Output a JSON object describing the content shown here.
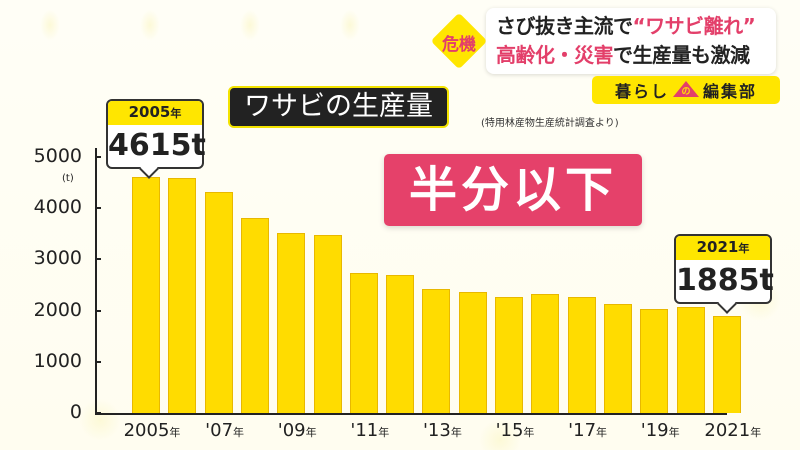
{
  "headline": {
    "badge": "危機",
    "line1_black": "さび抜き主流で",
    "line1_pink": "“ワサビ離れ”",
    "line2_pink": "高齢化・災害",
    "line2_black": "で生産量も激減"
  },
  "logo": {
    "left": "暮らし",
    "mark": "の",
    "right": "編集部"
  },
  "title": "ワサビの生産量",
  "source": "(特用林産物生産統計調査より)",
  "highlight": "半分以下",
  "callouts": [
    {
      "year": "2005",
      "nen": "年",
      "value": "4615t"
    },
    {
      "year": "2021",
      "nen": "年",
      "value": "1885t"
    }
  ],
  "colors": {
    "bar": "#ffdc00",
    "accent_pink": "#e5416a",
    "accent_yellow": "#ffe600",
    "title_bg": "#222222"
  },
  "chart_data": {
    "type": "bar",
    "title": "ワサビの生産量",
    "subtitle": "(特用林産物生産統計調査より)",
    "xlabel": "",
    "ylabel": "(t)",
    "ylim": [
      0,
      5000
    ],
    "yticks": [
      "0",
      "1000",
      "2000",
      "3000",
      "4000",
      "5000"
    ],
    "categories": [
      "2005",
      "2006",
      "2007",
      "2008",
      "2009",
      "2010",
      "2011",
      "2012",
      "2013",
      "2014",
      "2015",
      "2016",
      "2017",
      "2018",
      "2019",
      "2020",
      "2021"
    ],
    "values": [
      4615,
      4598,
      4320,
      3800,
      3525,
      3485,
      2737,
      2697,
      2420,
      2360,
      2260,
      2320,
      2260,
      2120,
      2025,
      2065,
      1885
    ],
    "xtick_labels": [
      {
        "index": 0,
        "text": "2005",
        "suffix": "年"
      },
      {
        "index": 2,
        "text": "'07",
        "suffix": "年"
      },
      {
        "index": 4,
        "text": "'09",
        "suffix": "年"
      },
      {
        "index": 6,
        "text": "'11",
        "suffix": "年"
      },
      {
        "index": 8,
        "text": "'13",
        "suffix": "年"
      },
      {
        "index": 10,
        "text": "'15",
        "suffix": "年"
      },
      {
        "index": 12,
        "text": "'17",
        "suffix": "年"
      },
      {
        "index": 14,
        "text": "'19",
        "suffix": "年"
      },
      {
        "index": 16,
        "text": "2021",
        "suffix": "年"
      }
    ],
    "annotations": [
      {
        "category": "2005",
        "text": "2005年 4615t"
      },
      {
        "category": "2021",
        "text": "2021年 1885t"
      },
      {
        "text": "半分以下"
      }
    ],
    "grid": false,
    "legend": null
  }
}
